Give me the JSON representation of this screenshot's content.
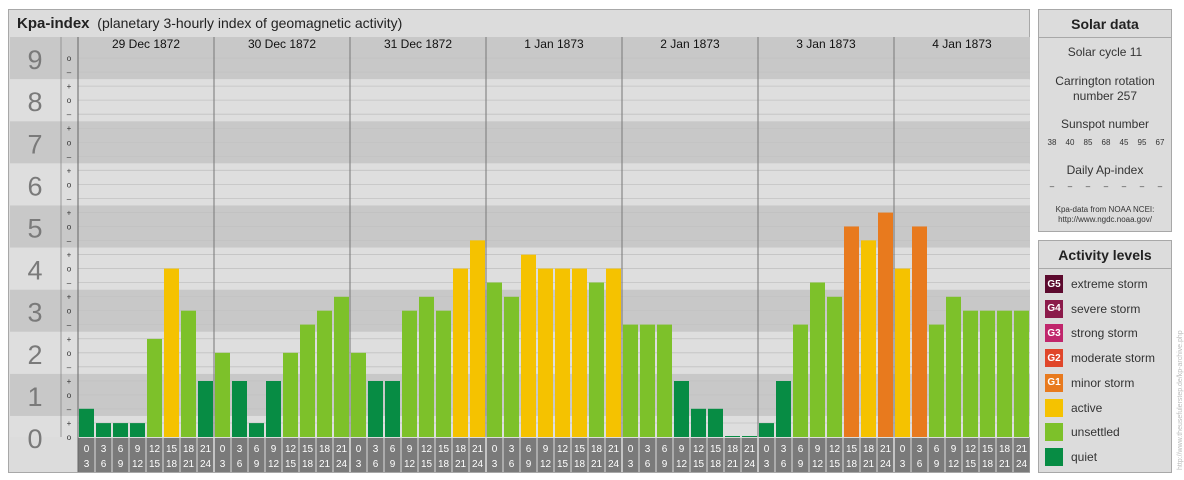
{
  "chart_data": {
    "type": "bar",
    "title": "Kpa-index",
    "subtitle": "(planetary 3-hourly index of geomagnetic activity)",
    "y_tick_labels": [
      "0",
      "1",
      "2",
      "3",
      "4",
      "5",
      "6",
      "7",
      "8",
      "9"
    ],
    "ylim": [
      0,
      9
    ],
    "sub_tick_labels": [
      "+",
      "o",
      "–"
    ],
    "days": [
      "29 Dec 1872",
      "30 Dec 1872",
      "31 Dec 1872",
      "1 Jan 1873",
      "2 Jan 1873",
      "3 Jan 1873",
      "4 Jan 1873"
    ],
    "interval_start_labels": [
      "0",
      "3",
      "6",
      "9",
      "12",
      "15",
      "18",
      "21"
    ],
    "interval_end_labels": [
      "3",
      "6",
      "9",
      "12",
      "15",
      "18",
      "21",
      "24"
    ],
    "values": [
      [
        0.67,
        0.33,
        0.33,
        0.33,
        2.33,
        4.0,
        3.0,
        1.33
      ],
      [
        2.0,
        1.33,
        0.33,
        1.33,
        2.0,
        2.67,
        3.0,
        3.33
      ],
      [
        2.0,
        1.33,
        1.33,
        3.0,
        3.33,
        3.0,
        4.0,
        4.67
      ],
      [
        3.67,
        3.33,
        4.33,
        4.0,
        4.0,
        4.0,
        3.67,
        4.0
      ],
      [
        2.67,
        2.67,
        2.67,
        1.33,
        0.67,
        0.67,
        0.0,
        0.0
      ],
      [
        0.33,
        1.33,
        2.67,
        3.67,
        3.33,
        5.0,
        4.67,
        5.33
      ],
      [
        4.0,
        5.0,
        2.67,
        3.33,
        3.0,
        3.0,
        3.0,
        3.0
      ]
    ],
    "legend": "right",
    "grid": true
  },
  "solar": {
    "heading": "Solar data",
    "cycle": "Solar cycle 11",
    "carrington_line1": "Carrington rotation",
    "carrington_line2": "number 257",
    "sunspot_label": "Sunspot number",
    "sunspot_values": [
      "38",
      "40",
      "85",
      "68",
      "45",
      "95",
      "67"
    ],
    "ap_label": "Daily Ap-index",
    "ap_values": [
      "–",
      "–",
      "–",
      "–",
      "–",
      "–",
      "–"
    ],
    "source_line1": "Kpa-data from NOAA NCEI:",
    "source_line2": "http://www.ngdc.noaa.gov/"
  },
  "activity": {
    "heading": "Activity levels",
    "items": [
      {
        "code": "G5",
        "label": "extreme storm",
        "color": "#5c0a2e"
      },
      {
        "code": "G4",
        "label": "severe storm",
        "color": "#8b1a4a"
      },
      {
        "code": "G3",
        "label": "strong storm",
        "color": "#c0266c"
      },
      {
        "code": "G2",
        "label": "moderate storm",
        "color": "#e0462a"
      },
      {
        "code": "G1",
        "label": "minor storm",
        "color": "#e87a1e"
      },
      {
        "code": "",
        "label": "active",
        "color": "#f5c200"
      },
      {
        "code": "",
        "label": "unsettled",
        "color": "#7dc12a"
      },
      {
        "code": "",
        "label": "quiet",
        "color": "#078c44"
      }
    ]
  },
  "colors": {
    "quiet": "#078c44",
    "unsettled": "#7dc12a",
    "active": "#f5c200",
    "minor_storm": "#e87a1e",
    "band_dark": "#c8c8c8",
    "band_light": "#dedede",
    "big_label": "#7a7a7a",
    "time_axis": "#7a7a7a"
  },
  "credit": "http://www.theusefulerstep.de/kp-archive.php"
}
